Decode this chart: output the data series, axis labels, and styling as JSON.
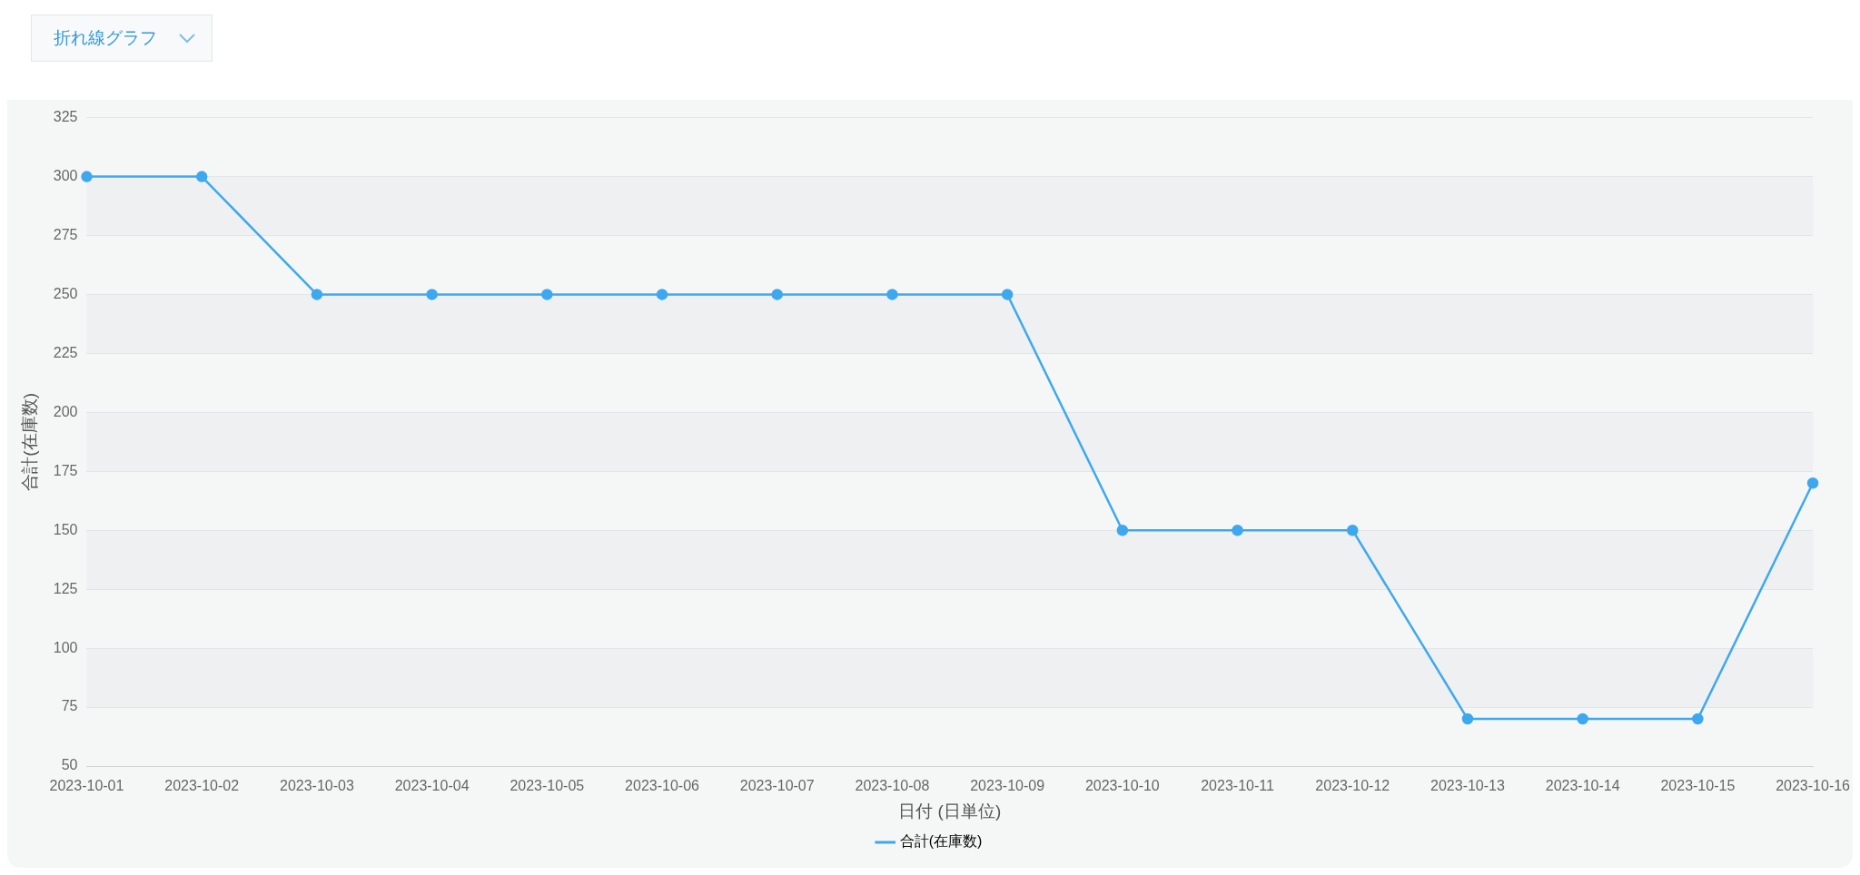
{
  "chart_data": {
    "type": "line",
    "annotations": [
      "折れ線グラフ"
    ],
    "xlabel": "日付 (日単位)",
    "ylabel": "合計(在庫数)",
    "categories": [
      "2023-10-01",
      "2023-10-02",
      "2023-10-03",
      "2023-10-04",
      "2023-10-05",
      "2023-10-06",
      "2023-10-07",
      "2023-10-08",
      "2023-10-09",
      "2023-10-10",
      "2023-10-11",
      "2023-10-12",
      "2023-10-13",
      "2023-10-14",
      "2023-10-15",
      "2023-10-16"
    ],
    "series": [
      {
        "name": "合計(在庫数)",
        "color": "#3ea8ef",
        "values": [
          300,
          300,
          250,
          250,
          250,
          250,
          250,
          250,
          250,
          150,
          150,
          150,
          70,
          70,
          70,
          170
        ]
      }
    ],
    "ylim": [
      50,
      325
    ],
    "yticks": [
      50,
      75,
      100,
      125,
      150,
      175,
      200,
      225,
      250,
      275,
      300,
      325
    ],
    "grid": "y",
    "legend": "bottom",
    "marker": "circle",
    "line_style": "solid"
  }
}
